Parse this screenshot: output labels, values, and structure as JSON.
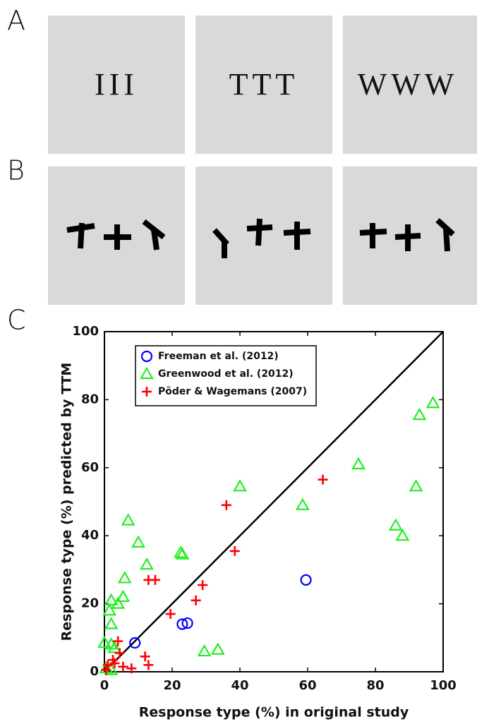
{
  "panel_labels": [
    "A",
    "B",
    "C"
  ],
  "panel_a_images": [
    "III",
    "TTT",
    "WWW"
  ],
  "chart_data": {
    "type": "scatter",
    "x_label": "Response type (%) in original study",
    "y_label": "Response type (%) predicted by TTM",
    "xlim": [
      0,
      100
    ],
    "ylim": [
      0,
      100
    ],
    "xticks": [
      0,
      20,
      40,
      60,
      80,
      100
    ],
    "yticks": [
      0,
      20,
      40,
      60,
      80,
      100
    ],
    "grid": false,
    "legend": "upper left",
    "series": [
      {
        "name": "Freeman et al. (2012)",
        "color": "#0000ff",
        "marker": "circle",
        "x": [
          9,
          23,
          24.5,
          59.5
        ],
        "values": [
          8.5,
          14,
          14.3,
          27
        ]
      },
      {
        "name": "Greenwood et al. (2012)",
        "color": "#22ee22",
        "marker": "triangle",
        "x": [
          97,
          93,
          75,
          92,
          86,
          88,
          58.5,
          40,
          33.5,
          29.5,
          22.5,
          23,
          7,
          10,
          12.5,
          6,
          5.5,
          4,
          2,
          1.5,
          2,
          0,
          2,
          0.5,
          2,
          3
        ],
        "values": [
          79,
          75.5,
          61,
          54.5,
          43,
          40,
          49,
          54.5,
          6.5,
          6,
          35,
          34.5,
          44.5,
          38,
          31.5,
          27.5,
          22,
          20,
          21,
          18,
          14,
          8.5,
          8,
          1,
          0.5,
          7
        ]
      },
      {
        "name": "Põder & Wagemans (2007)",
        "color": "#ff0000",
        "marker": "plus",
        "x": [
          64.5,
          36,
          38.5,
          29,
          27,
          19.5,
          13,
          15,
          12,
          13,
          8,
          5.5,
          4,
          4.5,
          2.5,
          1,
          0.5,
          3
        ],
        "values": [
          56.5,
          49,
          35.5,
          25.5,
          21,
          17,
          27,
          27,
          4.5,
          2,
          1,
          1.5,
          9,
          5.5,
          3.5,
          2,
          0.5,
          2.5
        ]
      }
    ]
  }
}
